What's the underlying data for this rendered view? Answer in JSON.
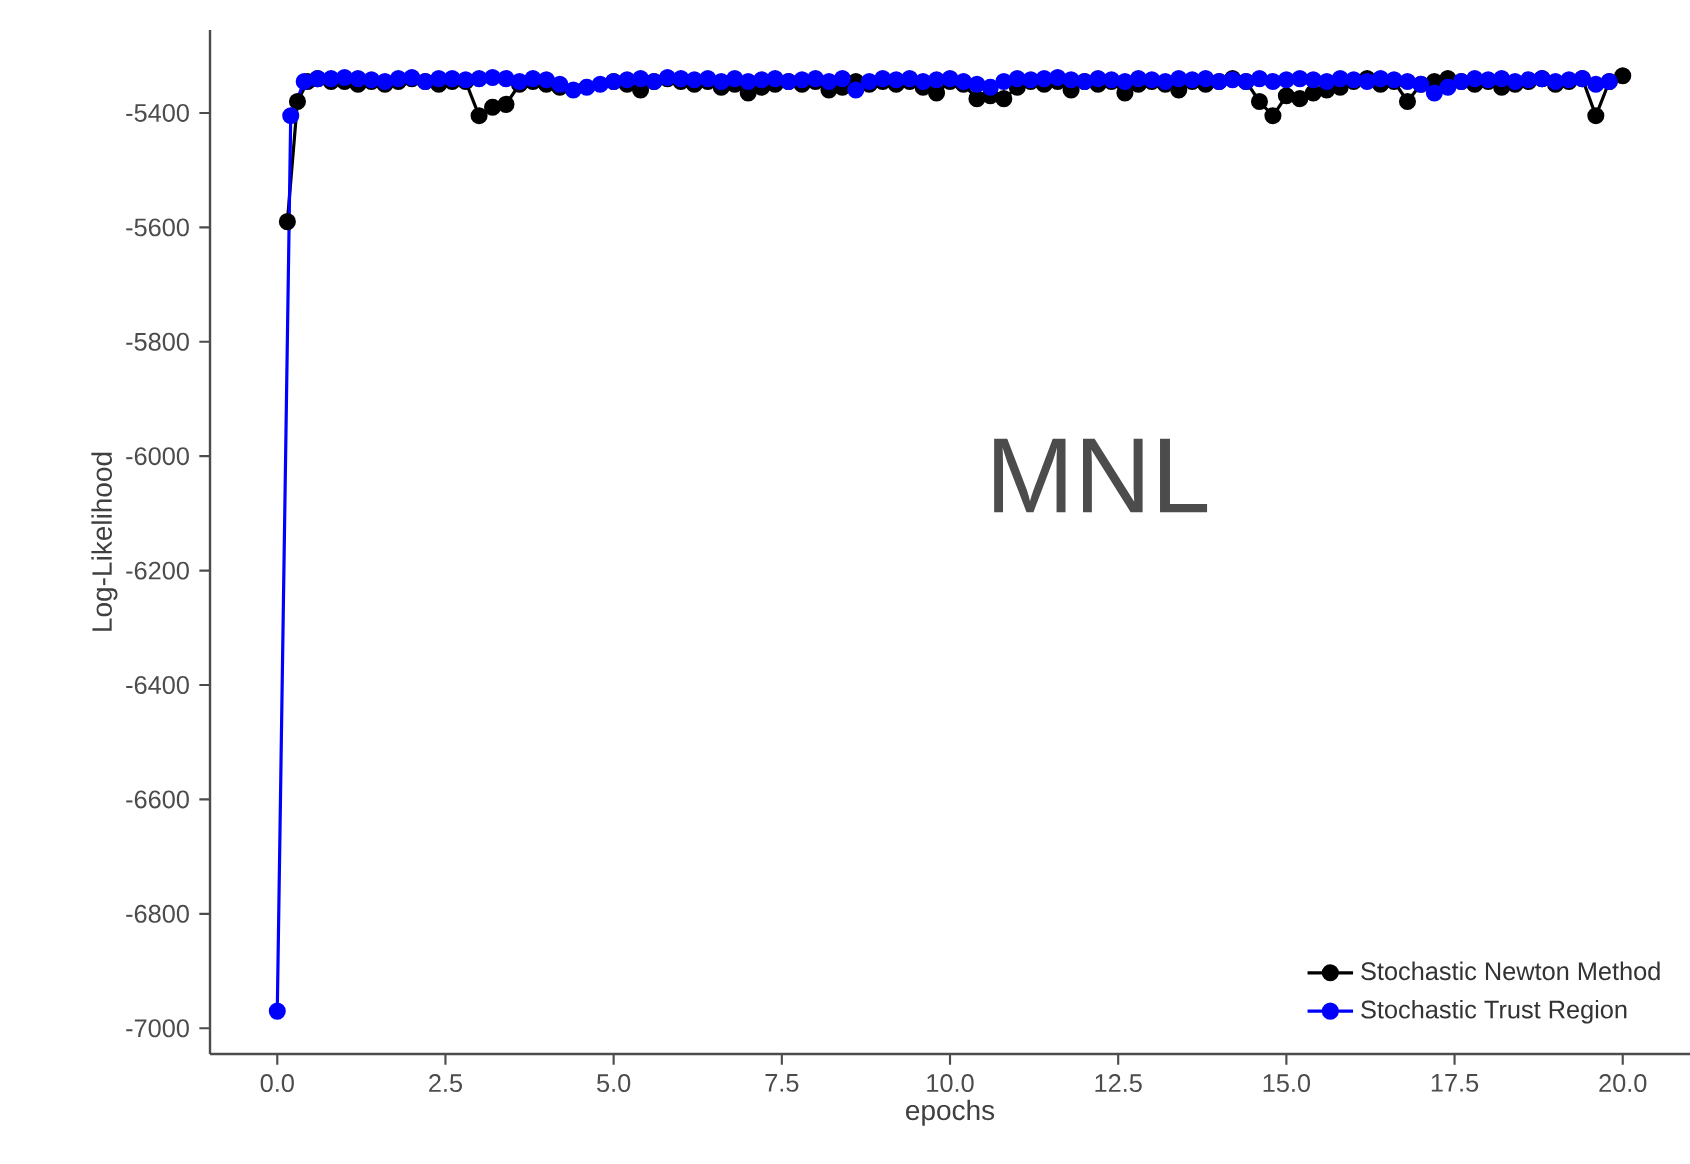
{
  "chart_data": {
    "type": "line",
    "xlabel": "epochs",
    "ylabel": "Log-Likelihood",
    "annotations": [
      "MNL"
    ],
    "xlim": [
      -1,
      21
    ],
    "ylim": [
      -7045,
      -5255
    ],
    "xticks": [
      {
        "value": 0,
        "label": "0.0"
      },
      {
        "value": 2.5,
        "label": "2.5"
      },
      {
        "value": 5,
        "label": "5.0"
      },
      {
        "value": 7.5,
        "label": "7.5"
      },
      {
        "value": 10,
        "label": "10.0"
      },
      {
        "value": 12.5,
        "label": "12.5"
      },
      {
        "value": 15,
        "label": "15.0"
      },
      {
        "value": 17.5,
        "label": "17.5"
      },
      {
        "value": 20,
        "label": "20.0"
      }
    ],
    "yticks": [
      -7000,
      -6800,
      -6600,
      -6400,
      -6200,
      -6000,
      -5800,
      -5600,
      -5400
    ],
    "grid": false,
    "legend": "bottom right",
    "marker": "circle",
    "line_style": "solid",
    "series": [
      {
        "name": "Stochastic Newton Method",
        "color": "#000000",
        "x": [
          0.15,
          0.3,
          0.45,
          0.6,
          0.8,
          1.0,
          1.2,
          1.4,
          1.6,
          1.8,
          2.0,
          2.2,
          2.4,
          2.6,
          2.8,
          3.0,
          3.2,
          3.4,
          3.6,
          3.8,
          4.0,
          4.2,
          4.4,
          4.6,
          4.8,
          5.0,
          5.2,
          5.4,
          5.6,
          5.8,
          6.0,
          6.2,
          6.4,
          6.6,
          6.8,
          7.0,
          7.2,
          7.4,
          7.6,
          7.8,
          8.0,
          8.2,
          8.4,
          8.6,
          8.8,
          9.0,
          9.2,
          9.4,
          9.6,
          9.8,
          10.0,
          10.2,
          10.4,
          10.6,
          10.8,
          11.0,
          11.2,
          11.4,
          11.6,
          11.8,
          12.0,
          12.2,
          12.4,
          12.6,
          12.8,
          13.0,
          13.2,
          13.4,
          13.6,
          13.8,
          14.0,
          14.2,
          14.4,
          14.6,
          14.8,
          15.0,
          15.2,
          15.4,
          15.6,
          15.8,
          16.0,
          16.2,
          16.4,
          16.6,
          16.8,
          17.0,
          17.2,
          17.4,
          17.6,
          17.8,
          18.0,
          18.2,
          18.4,
          18.6,
          18.8,
          19.0,
          19.2,
          19.4,
          19.6,
          19.8,
          20.0
        ],
        "values": [
          -5590,
          -5380,
          -5345,
          -5340,
          -5345,
          -5345,
          -5350,
          -5345,
          -5350,
          -5345,
          -5340,
          -5345,
          -5350,
          -5345,
          -5345,
          -5405,
          -5390,
          -5385,
          -5350,
          -5345,
          -5350,
          -5355,
          null,
          null,
          null,
          -5345,
          -5350,
          -5360,
          -5345,
          -5340,
          -5345,
          -5350,
          -5345,
          -5355,
          -5350,
          -5365,
          -5355,
          -5350,
          -5345,
          -5350,
          -5345,
          -5360,
          -5355,
          -5345,
          -5350,
          -5345,
          -5350,
          -5345,
          -5355,
          -5365,
          -5345,
          -5350,
          -5375,
          -5370,
          -5375,
          -5355,
          -5345,
          -5350,
          -5345,
          -5360,
          -5345,
          -5350,
          -5345,
          -5365,
          -5350,
          -5345,
          -5350,
          -5360,
          -5345,
          -5350,
          -5345,
          -5340,
          -5345,
          -5380,
          -5405,
          -5370,
          -5375,
          -5365,
          -5360,
          -5355,
          -5345,
          -5340,
          -5350,
          -5345,
          -5380,
          -5350,
          -5345,
          -5340,
          -5345,
          -5350,
          -5345,
          -5355,
          -5350,
          -5345,
          -5340,
          -5350,
          -5345,
          -5340,
          -5405,
          -5345,
          -5335
        ]
      },
      {
        "name": "Stochastic Trust Region",
        "color": "#0000ff",
        "x": [
          0,
          0.2,
          0.4,
          0.6,
          0.8,
          1.0,
          1.2,
          1.4,
          1.6,
          1.8,
          2.0,
          2.2,
          2.4,
          2.6,
          2.8,
          3.0,
          3.2,
          3.4,
          3.6,
          3.8,
          4.0,
          4.2,
          4.4,
          4.6,
          4.8,
          5.0,
          5.2,
          5.4,
          5.6,
          5.8,
          6.0,
          6.2,
          6.4,
          6.6,
          6.8,
          7.0,
          7.2,
          7.4,
          7.6,
          7.8,
          8.0,
          8.2,
          8.4,
          8.6,
          8.8,
          9.0,
          9.2,
          9.4,
          9.6,
          9.8,
          10.0,
          10.2,
          10.4,
          10.6,
          10.8,
          11.0,
          11.2,
          11.4,
          11.6,
          11.8,
          12.0,
          12.2,
          12.4,
          12.6,
          12.8,
          13.0,
          13.2,
          13.4,
          13.6,
          13.8,
          14.0,
          14.2,
          14.4,
          14.6,
          14.8,
          15.0,
          15.2,
          15.4,
          15.6,
          15.8,
          16.0,
          16.2,
          16.4,
          16.6,
          16.8,
          17.0,
          17.2,
          17.4,
          17.6,
          17.8,
          18.0,
          18.2,
          18.4,
          18.6,
          18.8,
          19.0,
          19.2,
          19.4,
          19.6,
          19.8
        ],
        "values": [
          -6970,
          -5405,
          -5345,
          -5340,
          -5340,
          -5338,
          -5340,
          -5342,
          -5345,
          -5340,
          -5338,
          -5345,
          -5340,
          -5340,
          -5342,
          -5340,
          -5338,
          -5340,
          -5345,
          -5340,
          -5342,
          -5350,
          -5360,
          -5355,
          -5350,
          -5345,
          -5342,
          -5340,
          -5345,
          -5338,
          -5340,
          -5342,
          -5340,
          -5345,
          -5340,
          -5345,
          -5342,
          -5340,
          -5345,
          -5342,
          -5340,
          -5345,
          -5340,
          -5360,
          -5345,
          -5340,
          -5342,
          -5340,
          -5345,
          -5342,
          -5340,
          -5345,
          -5350,
          -5355,
          -5345,
          -5340,
          -5342,
          -5340,
          -5338,
          -5342,
          -5345,
          -5340,
          -5342,
          -5345,
          -5340,
          -5342,
          -5345,
          -5340,
          -5342,
          -5340,
          -5345,
          -5342,
          -5345,
          -5340,
          -5345,
          -5342,
          -5340,
          -5342,
          -5345,
          -5340,
          -5342,
          -5345,
          -5340,
          -5342,
          -5345,
          -5350,
          -5365,
          -5355,
          -5345,
          -5340,
          -5342,
          -5340,
          -5345,
          -5342,
          -5340,
          -5345,
          -5342,
          -5340,
          -5350,
          -5345
        ]
      }
    ]
  }
}
